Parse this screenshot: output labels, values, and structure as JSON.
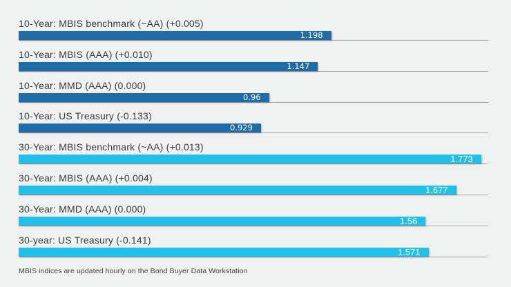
{
  "chart_data": {
    "type": "bar",
    "orientation": "horizontal",
    "title": "",
    "xlabel": "",
    "ylabel": "",
    "xlim": [
      0,
      1.8
    ],
    "grid": false,
    "legend": false,
    "bars": [
      {
        "label": "10-Year: MBIS benchmark (~AA) (+0.005)",
        "value": 1.198,
        "display_value": "1.198",
        "series": "10-year"
      },
      {
        "label": "10-Year: MBIS (AAA) (+0.010)",
        "value": 1.147,
        "display_value": "1.147",
        "series": "10-year"
      },
      {
        "label": "10-Year: MMD (AAA) (0.000)",
        "value": 0.96,
        "display_value": "0.96",
        "series": "10-year"
      },
      {
        "label": "10-Year: US Treasury (-0.133)",
        "value": 0.929,
        "display_value": "0.929",
        "series": "10-year"
      },
      {
        "label": "30-Year: MBIS benchmark (~AA) (+0.013)",
        "value": 1.773,
        "display_value": "1.773",
        "series": "30-year"
      },
      {
        "label": "30-Year: MBIS (AAA) (+0.004)",
        "value": 1.677,
        "display_value": "1.677",
        "series": "30-year"
      },
      {
        "label": "30-Year: MMD (AAA) (0.000)",
        "value": 1.56,
        "display_value": "1.56",
        "series": "30-year"
      },
      {
        "label": "30-year: US Treasury (-0.141)",
        "value": 1.571,
        "display_value": "1.571",
        "series": "30-year"
      }
    ],
    "footnote": "MBIS indices are updated hourly on the Bond Buyer Data Workstation"
  },
  "colors": {
    "series_10_year": "#1f6ca8",
    "series_30_year": "#22bfe9",
    "background": "#f0f1f1",
    "baseline": "#a8a8a8",
    "label_text": "#3a3a3a",
    "value_text": "#ffffff"
  }
}
